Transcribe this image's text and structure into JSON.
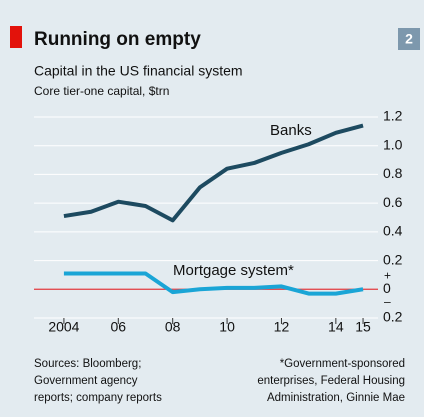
{
  "chart_data": {
    "type": "line",
    "badge": "2",
    "title": "Running on empty",
    "subtitle": "Capital in the US financial system",
    "unit_note": "Core tier-one capital, $trn",
    "x": [
      2004,
      2005,
      2006,
      2007,
      2008,
      2009,
      2010,
      2011,
      2012,
      2013,
      2014,
      2015
    ],
    "xlim": [
      2002.9,
      2015.55
    ],
    "xticks": [
      2004,
      {
        "value": 2006,
        "label": "06"
      },
      {
        "value": 2008,
        "label": "08"
      },
      {
        "value": 2010,
        "label": "10"
      },
      {
        "value": 2012,
        "label": "12"
      },
      {
        "value": 2014,
        "label": "14"
      },
      {
        "value": 2015,
        "label": "15"
      }
    ],
    "ylim": [
      -0.2,
      1.2
    ],
    "yticks": [
      {
        "value": 1.2,
        "label": "1.2"
      },
      {
        "value": 1,
        "label": "1.0"
      },
      {
        "value": 0.8,
        "label": "0.8"
      },
      {
        "value": 0.6,
        "label": "0.6"
      },
      {
        "value": 0.4,
        "label": "0.4"
      },
      {
        "value": 0.2,
        "label": "0.2"
      },
      0,
      {
        "value": -0.2,
        "label": "0.2"
      }
    ],
    "sign_labels": {
      "positive": "+",
      "negative": "–"
    },
    "grid": true,
    "zero_line_color": "#e0393e",
    "series": [
      {
        "name": "Banks",
        "color": "#1d4a60",
        "values": [
          0.51,
          0.54,
          0.61,
          0.58,
          0.48,
          0.71,
          0.84,
          0.88,
          0.95,
          1.01,
          1.09,
          1.14
        ]
      },
      {
        "name": "Mortgage system*",
        "color": "#1aa5d6",
        "values": [
          0.11,
          0.11,
          0.11,
          0.11,
          -0.02,
          0.0,
          0.01,
          0.01,
          0.02,
          -0.03,
          -0.03,
          0.0
        ]
      }
    ],
    "sources": [
      "Sources: Bloomberg;",
      "Government agency",
      "reports; company reports"
    ],
    "footnote": [
      "*Government-sponsored",
      "enterprises, Federal Housing",
      "Administration, Ginnie Mae"
    ]
  }
}
